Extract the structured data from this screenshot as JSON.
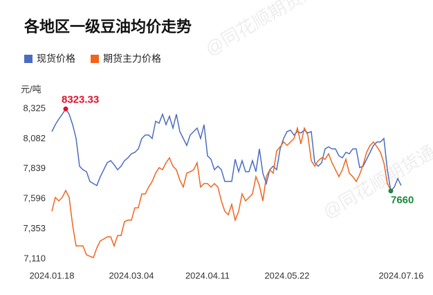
{
  "chart_data": {
    "type": "line",
    "title": "各地区一级豆油均价走势",
    "y_label": "元/吨",
    "watermarks": [
      "@同花顺期货通",
      "@同花顺期货通"
    ],
    "categories": [
      "2024.01.18",
      null,
      null,
      null,
      null,
      null,
      null,
      null,
      null,
      null,
      null,
      null,
      null,
      null,
      null,
      null,
      null,
      null,
      null,
      null,
      null,
      null,
      null,
      "2024.03.04",
      null,
      null,
      null,
      null,
      null,
      null,
      null,
      null,
      null,
      null,
      null,
      null,
      null,
      null,
      null,
      null,
      null,
      null,
      null,
      null,
      null,
      "2024.04.11",
      null,
      null,
      null,
      null,
      null,
      null,
      null,
      null,
      null,
      null,
      null,
      null,
      null,
      null,
      null,
      null,
      null,
      null,
      null,
      null,
      null,
      null,
      "2024.05.22",
      null,
      null,
      null,
      null,
      null,
      null,
      null,
      null,
      null,
      null,
      null,
      null,
      null,
      null,
      null,
      null,
      null,
      null,
      null,
      null,
      null,
      null,
      null,
      null,
      null,
      null,
      null,
      null,
      null,
      null,
      null,
      null,
      "2024.07.16"
    ],
    "ylim": [
      7110,
      8325
    ],
    "yticks": [
      {
        "value": 7110,
        "label": "7,110"
      },
      {
        "value": 7353,
        "label": "7,353"
      },
      {
        "value": 7596,
        "label": "7,596"
      },
      {
        "value": 7839,
        "label": "7,839"
      },
      {
        "value": 8082,
        "label": "8,082"
      },
      {
        "value": 8325,
        "label": "8,325"
      }
    ],
    "grid": false,
    "series": [
      {
        "name": "现货价格",
        "color": "#4a6cc0",
        "values": [
          8140,
          8196,
          8241,
          8280,
          8323.33,
          8280,
          8196,
          8084,
          7860,
          7832,
          7816,
          7737,
          7720,
          7704,
          7776,
          7832,
          7888,
          7905,
          7872,
          7832,
          7860,
          7905,
          7928,
          7961,
          7972,
          8000,
          8084,
          8112,
          8112,
          8084,
          8224,
          8208,
          8280,
          8196,
          8264,
          8168,
          8280,
          8140,
          8084,
          8028,
          8112,
          8140,
          8168,
          8084,
          8196,
          7944,
          7916,
          7832,
          7860,
          7832,
          7737,
          7737,
          7737,
          7916,
          7816,
          7905,
          7816,
          7816,
          7905,
          7816,
          8000,
          7804,
          7720,
          7832,
          7860,
          7832,
          8000,
          8084,
          8140,
          8152,
          8112,
          8140,
          8129,
          8152,
          8129,
          8140,
          7888,
          7860,
          7888,
          8000,
          8017,
          8000,
          8000,
          7944,
          7928,
          7972,
          7961,
          8000,
          8000,
          7849,
          7860,
          7916,
          7972,
          8028,
          8056,
          8056,
          8084,
          7832,
          7660,
          7692,
          7760,
          7704
        ],
        "value_labels": [
          null,
          null,
          null,
          null,
          "8323.33",
          null,
          null,
          null,
          null,
          null,
          null,
          null,
          null,
          null,
          null,
          null,
          null,
          null,
          null,
          null,
          null,
          null,
          null,
          null,
          null,
          null,
          null,
          null,
          null,
          null,
          null,
          null,
          null,
          null,
          null,
          null,
          null,
          null,
          null,
          null,
          null,
          null,
          null,
          null,
          null,
          null,
          null,
          null,
          null,
          null,
          null,
          null,
          null,
          null,
          null,
          null,
          null,
          null,
          null,
          null,
          null,
          null,
          null,
          null,
          null,
          null,
          null,
          null,
          null,
          null,
          null,
          null,
          null,
          null,
          null,
          null,
          null,
          null,
          null,
          null,
          null,
          null,
          null,
          null,
          null,
          null,
          null,
          null,
          null,
          null,
          null,
          null,
          null,
          null,
          null,
          null,
          null,
          null,
          "7660",
          null,
          null,
          null
        ]
      },
      {
        "name": "期货主力价格",
        "color": "#f0641e",
        "values": [
          7496,
          7608,
          7580,
          7608,
          7664,
          7608,
          7384,
          7216,
          7216,
          7216,
          7144,
          7132,
          7121,
          7200,
          7256,
          7272,
          7289,
          7289,
          7216,
          7300,
          7300,
          7412,
          7424,
          7424,
          7524,
          7524,
          7636,
          7636,
          7692,
          7737,
          7804,
          7849,
          7832,
          7888,
          7928,
          7860,
          7832,
          7748,
          7692,
          7804,
          7816,
          7832,
          7888,
          7692,
          7720,
          7720,
          7692,
          7720,
          7692,
          7580,
          7496,
          7468,
          7552,
          7424,
          7496,
          7636,
          7580,
          7608,
          7636,
          7776,
          7704,
          7580,
          7776,
          7832,
          7804,
          7984,
          8017,
          8056,
          8028,
          8056,
          8084,
          8168,
          8040,
          8168,
          8112,
          7905,
          7860,
          7905,
          7928,
          7916,
          7961,
          7888,
          7832,
          7776,
          7832,
          7916,
          7804,
          7776,
          7737,
          7793,
          7872,
          7972,
          8028,
          8056,
          8017,
          7972,
          7888,
          7720,
          7664,
          null,
          null,
          null
        ]
      }
    ]
  }
}
